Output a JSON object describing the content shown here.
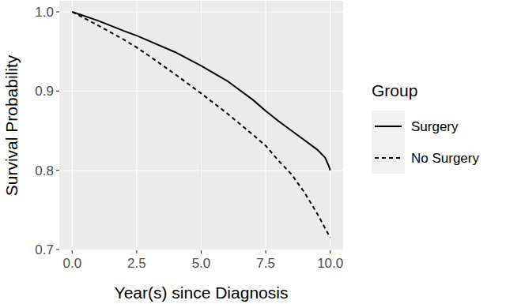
{
  "chart_data": {
    "type": "line",
    "x_label": "Year(s) since Diagnosis",
    "y_label": "Survival Probability",
    "legend_title": "Group",
    "legend": "right",
    "grid": true,
    "xlim": [
      -0.5,
      10.5
    ],
    "ylim": [
      0.699,
      1.014
    ],
    "xticks": [
      {
        "value": 0,
        "label": "0.0"
      },
      2.5,
      {
        "value": 5,
        "label": "5.0"
      },
      7.5,
      {
        "value": 10,
        "label": "10.0"
      }
    ],
    "yticks": [
      0.7,
      0.8,
      0.9,
      {
        "value": 1,
        "label": "1.0"
      }
    ],
    "series": [
      {
        "name": "Surgery",
        "color": "#000000",
        "line_style": "solid",
        "x": [
          0,
          1,
          2,
          2.5,
          3,
          4,
          5,
          6,
          7,
          7.5,
          8,
          8.5,
          9,
          9.5,
          9.8,
          9.95,
          10
        ],
        "values": [
          1.0,
          0.989,
          0.976,
          0.97,
          0.963,
          0.949,
          0.932,
          0.913,
          0.889,
          0.875,
          0.862,
          0.85,
          0.838,
          0.826,
          0.816,
          0.805,
          0.8
        ]
      },
      {
        "name": "No Surgery",
        "color": "#000000",
        "line_style": "dashed",
        "x": [
          0,
          1,
          2,
          2.5,
          3,
          4,
          5,
          6,
          7,
          7.5,
          8,
          8.5,
          9,
          9.5,
          10
        ],
        "values": [
          1.0,
          0.983,
          0.965,
          0.955,
          0.944,
          0.921,
          0.897,
          0.872,
          0.845,
          0.831,
          0.812,
          0.795,
          0.772,
          0.745,
          0.715
        ]
      }
    ]
  }
}
